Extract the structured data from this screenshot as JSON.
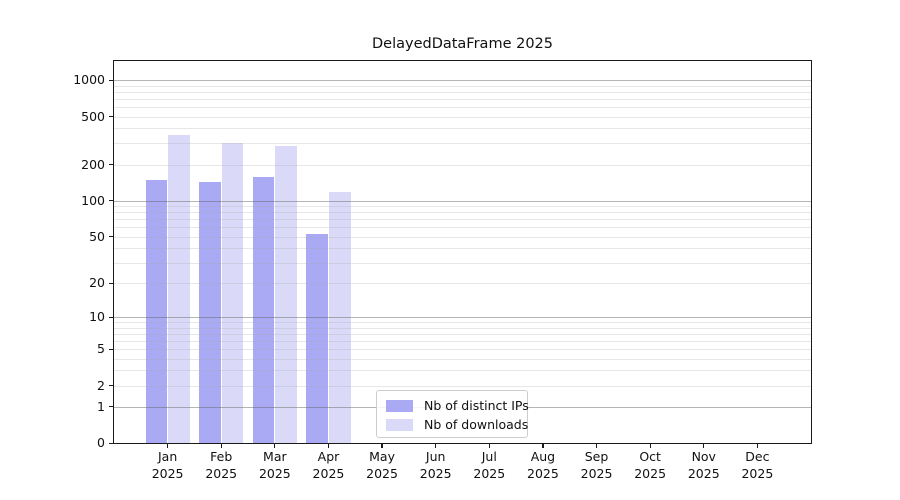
{
  "chart_data": {
    "type": "bar",
    "title": "DelayedDataFrame 2025",
    "categories": [
      "Jan",
      "Feb",
      "Mar",
      "Apr",
      "May",
      "Jun",
      "Jul",
      "Aug",
      "Sep",
      "Oct",
      "Nov",
      "Dec"
    ],
    "category_year": "2025",
    "series": [
      {
        "name": "Nb of distinct IPs",
        "color": "#aaaaf4",
        "values": [
          150,
          143,
          158,
          53,
          null,
          null,
          null,
          null,
          null,
          null,
          null,
          null
        ]
      },
      {
        "name": "Nb of downloads",
        "color": "#dadaf8",
        "values": [
          350,
          300,
          285,
          118,
          null,
          null,
          null,
          null,
          null,
          null,
          null,
          null
        ]
      }
    ],
    "yaxis": {
      "scale": "log1p",
      "ticks": [
        0,
        1,
        2,
        5,
        10,
        20,
        50,
        100,
        200,
        500,
        1000
      ],
      "major_gridlines": [
        1,
        10,
        100,
        1000
      ],
      "minor_grid_subs": [
        2,
        3,
        4,
        5,
        6,
        7,
        8,
        9
      ],
      "minor_grid_decades": [
        1,
        10,
        100
      ]
    },
    "xlabel": "",
    "ylabel": "",
    "grid": "horizontal",
    "legend_position": "lower-center"
  }
}
